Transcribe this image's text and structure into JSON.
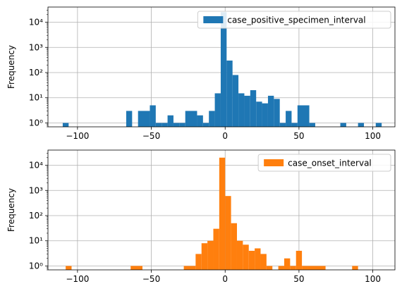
{
  "chart_data": [
    {
      "type": "bar",
      "subtype": "histogram",
      "series": [
        {
          "name": "case_positive_specimen_interval",
          "color": "#1f77b4",
          "bins": [
            {
              "x0": -110,
              "x1": -106,
              "count": 1
            },
            {
              "x0": -67,
              "x1": -63,
              "count": 3
            },
            {
              "x0": -59,
              "x1": -51,
              "count": 3
            },
            {
              "x0": -51,
              "x1": -47,
              "count": 5
            },
            {
              "x0": -47,
              "x1": -43,
              "count": 1
            },
            {
              "x0": -43,
              "x1": -39,
              "count": 1
            },
            {
              "x0": -39,
              "x1": -35,
              "count": 2
            },
            {
              "x0": -35,
              "x1": -31,
              "count": 1
            },
            {
              "x0": -31,
              "x1": -27,
              "count": 1
            },
            {
              "x0": -27,
              "x1": -19,
              "count": 3
            },
            {
              "x0": -19,
              "x1": -15,
              "count": 2
            },
            {
              "x0": -15,
              "x1": -11,
              "count": 1
            },
            {
              "x0": -11,
              "x1": -7,
              "count": 3
            },
            {
              "x0": -7,
              "x1": -3,
              "count": 15
            },
            {
              "x0": -3,
              "x1": 1,
              "count": 25000
            },
            {
              "x0": 1,
              "x1": 5,
              "count": 300
            },
            {
              "x0": 5,
              "x1": 9,
              "count": 80
            },
            {
              "x0": 9,
              "x1": 13,
              "count": 15
            },
            {
              "x0": 13,
              "x1": 17,
              "count": 12
            },
            {
              "x0": 17,
              "x1": 21,
              "count": 20
            },
            {
              "x0": 21,
              "x1": 25,
              "count": 7
            },
            {
              "x0": 25,
              "x1": 29,
              "count": 6
            },
            {
              "x0": 29,
              "x1": 33,
              "count": 12
            },
            {
              "x0": 33,
              "x1": 37,
              "count": 9
            },
            {
              "x0": 37,
              "x1": 41,
              "count": 1
            },
            {
              "x0": 41,
              "x1": 45,
              "count": 3
            },
            {
              "x0": 45,
              "x1": 49,
              "count": 1
            },
            {
              "x0": 49,
              "x1": 57,
              "count": 5
            },
            {
              "x0": 57,
              "x1": 61,
              "count": 1
            },
            {
              "x0": 78,
              "x1": 82,
              "count": 1
            },
            {
              "x0": 90,
              "x1": 94,
              "count": 1
            },
            {
              "x0": 102,
              "x1": 106,
              "count": 1
            }
          ]
        }
      ],
      "xlim": [
        -120,
        115
      ],
      "ylim": [
        0.7,
        40000
      ],
      "yscale": "log",
      "xticks": [
        -100,
        -50,
        0,
        50,
        100
      ],
      "xtick_labels": [
        "−100",
        "−50",
        "0",
        "50",
        "100"
      ],
      "yticks": [
        1,
        10,
        100,
        1000,
        10000
      ],
      "ytick_labels": [
        "10⁰",
        "10¹",
        "10²",
        "10³",
        "10⁴"
      ],
      "ylabel": "Frequency",
      "grid": true,
      "legend": "top-right"
    },
    {
      "type": "bar",
      "subtype": "histogram",
      "series": [
        {
          "name": "case_onset_interval",
          "color": "#ff7f0e",
          "bins": [
            {
              "x0": -108,
              "x1": -104,
              "count": 1
            },
            {
              "x0": -64,
              "x1": -56,
              "count": 1
            },
            {
              "x0": -28,
              "x1": -20,
              "count": 1
            },
            {
              "x0": -20,
              "x1": -16,
              "count": 3
            },
            {
              "x0": -16,
              "x1": -12,
              "count": 8
            },
            {
              "x0": -12,
              "x1": -8,
              "count": 10
            },
            {
              "x0": -8,
              "x1": -4,
              "count": 30
            },
            {
              "x0": -4,
              "x1": 0,
              "count": 20000
            },
            {
              "x0": 0,
              "x1": 4,
              "count": 600
            },
            {
              "x0": 4,
              "x1": 8,
              "count": 50
            },
            {
              "x0": 8,
              "x1": 12,
              "count": 10
            },
            {
              "x0": 12,
              "x1": 16,
              "count": 7
            },
            {
              "x0": 16,
              "x1": 20,
              "count": 4
            },
            {
              "x0": 20,
              "x1": 24,
              "count": 5
            },
            {
              "x0": 24,
              "x1": 28,
              "count": 3
            },
            {
              "x0": 28,
              "x1": 32,
              "count": 1
            },
            {
              "x0": 36,
              "x1": 40,
              "count": 1
            },
            {
              "x0": 40,
              "x1": 44,
              "count": 2
            },
            {
              "x0": 44,
              "x1": 48,
              "count": 1
            },
            {
              "x0": 48,
              "x1": 52,
              "count": 4
            },
            {
              "x0": 52,
              "x1": 56,
              "count": 1
            },
            {
              "x0": 56,
              "x1": 68,
              "count": 1
            },
            {
              "x0": 86,
              "x1": 90,
              "count": 1
            }
          ]
        }
      ],
      "xlim": [
        -120,
        115
      ],
      "ylim": [
        0.7,
        40000
      ],
      "yscale": "log",
      "xticks": [
        -100,
        -50,
        0,
        50,
        100
      ],
      "xtick_labels": [
        "−100",
        "−50",
        "0",
        "50",
        "100"
      ],
      "yticks": [
        1,
        10,
        100,
        1000,
        10000
      ],
      "ytick_labels": [
        "10⁰",
        "10¹",
        "10²",
        "10³",
        "10⁴"
      ],
      "ylabel": "Frequency",
      "grid": true,
      "legend": "top-right"
    }
  ]
}
